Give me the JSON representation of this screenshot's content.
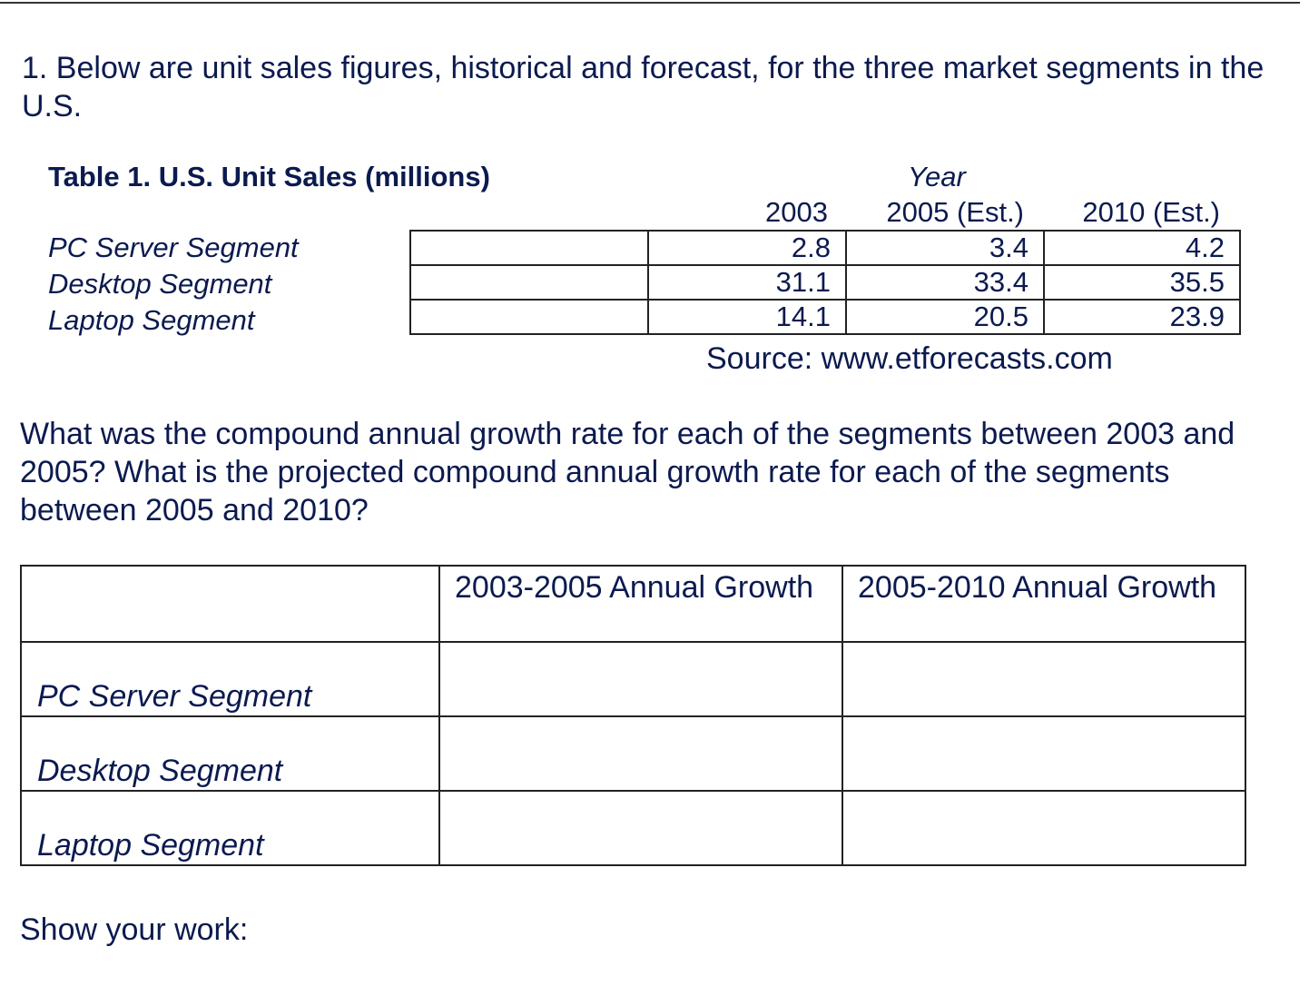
{
  "question1": "1. Below are unit sales figures, historical and forecast, for the three market segments in the U.S.",
  "table1": {
    "title": "Table 1.  U.S. Unit Sales (millions)",
    "year_label": "Year",
    "columns": [
      "2003",
      "2005 (Est.)",
      "2010 (Est.)"
    ],
    "rows": [
      {
        "label": "PC Server Segment",
        "values": [
          "2.8",
          "3.4",
          "4.2"
        ]
      },
      {
        "label": "Desktop Segment",
        "values": [
          "31.1",
          "33.4",
          "35.5"
        ]
      },
      {
        "label": "Laptop Segment",
        "values": [
          "14.1",
          "20.5",
          "23.9"
        ]
      }
    ],
    "source": "Source: www.etforecasts.com"
  },
  "question2": "What was the compound annual growth rate for each of the segments between 2003 and 2005?  What is the projected compound annual growth rate for each of the segments between 2005 and 2010?",
  "answer_table": {
    "headers": [
      "2003-2005 Annual Growth",
      "2005-2010 Annual Growth"
    ],
    "rows": [
      "PC Server Segment",
      "Desktop Segment",
      "Laptop Segment"
    ]
  },
  "show_work": "Show your work:"
}
